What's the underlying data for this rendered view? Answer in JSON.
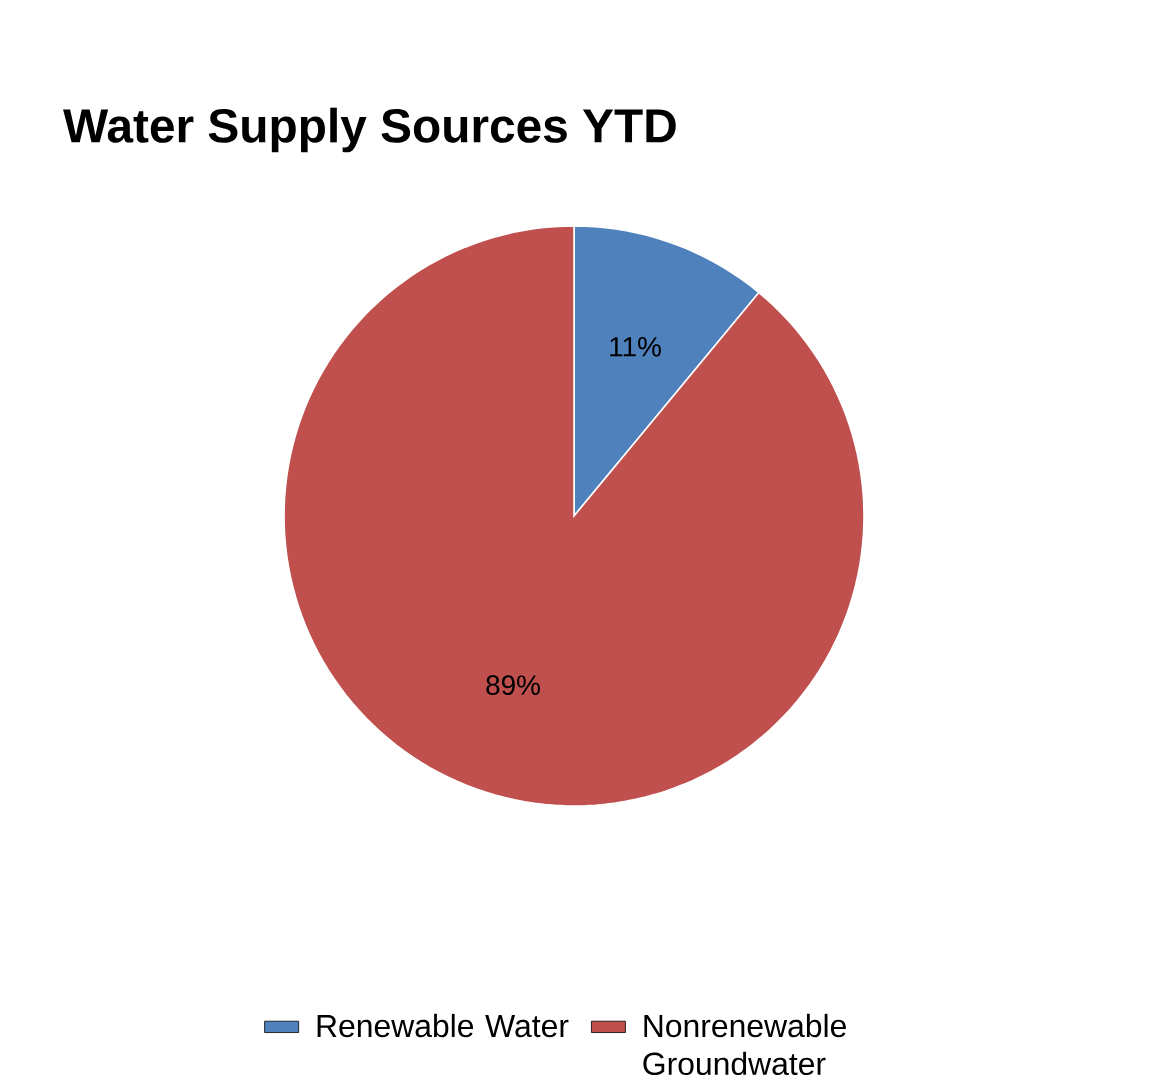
{
  "chart_data": {
    "type": "pie",
    "title": "Water Supply Sources YTD",
    "categories": [
      "Renewable Water",
      "Nonrenewable Groundwater"
    ],
    "values": [
      11,
      89
    ],
    "value_labels": [
      "11%",
      "89%"
    ],
    "colors": [
      "#4f81bd",
      "#c0504d"
    ],
    "legend": "bottom"
  }
}
